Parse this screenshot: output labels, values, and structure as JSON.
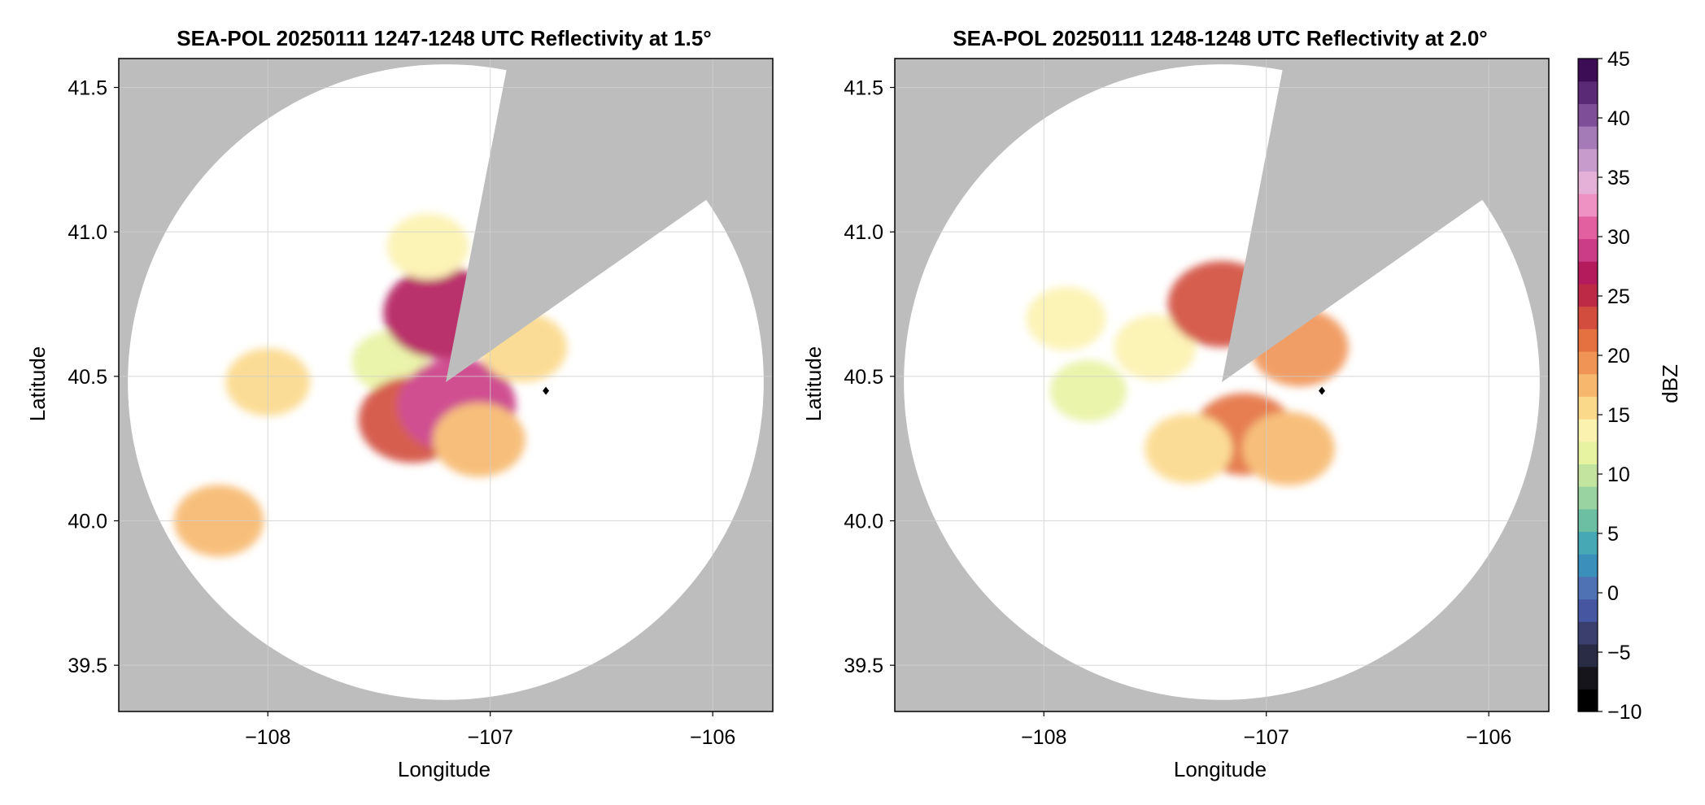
{
  "chart_data": [
    {
      "type": "heatmap",
      "title": "SEA-POL 20250111 1247-1248 UTC Reflectivity at 1.5°",
      "xlabel": "Longitude",
      "ylabel": "Latitude",
      "xlim": [
        -108.67,
        -105.73
      ],
      "ylim": [
        39.34,
        41.6
      ],
      "xticks": [
        -108,
        -107,
        -106
      ],
      "xtick_labels": [
        "−108",
        "−107",
        "−106"
      ],
      "yticks": [
        39.5,
        40.0,
        40.5,
        41.0,
        41.5
      ],
      "ytick_labels": [
        "39.5",
        "40.0",
        "40.5",
        "41.0",
        "41.5"
      ],
      "grid": true,
      "radar_center": [
        -107.2,
        40.48
      ],
      "range_ring_deg_lat": 1.1,
      "blocked_sector_azimuth_deg": [
        11,
        55
      ],
      "marker": [
        -106.75,
        40.45
      ],
      "echo_regions": [
        {
          "lon": -107.45,
          "lat": 40.55,
          "value": 12
        },
        {
          "lon": -107.22,
          "lat": 40.72,
          "value": 27
        },
        {
          "lon": -107.35,
          "lat": 40.35,
          "value": 24
        },
        {
          "lon": -107.15,
          "lat": 40.4,
          "value": 28
        },
        {
          "lon": -107.05,
          "lat": 40.28,
          "value": 18
        },
        {
          "lon": -106.85,
          "lat": 40.6,
          "value": 16
        },
        {
          "lon": -108.0,
          "lat": 40.48,
          "value": 15
        },
        {
          "lon": -107.28,
          "lat": 40.95,
          "value": 14
        },
        {
          "lon": -108.22,
          "lat": 40.0,
          "value": 17
        }
      ]
    },
    {
      "type": "heatmap",
      "title": "SEA-POL 20250111 1248-1248 UTC Reflectivity at 2.0°",
      "xlabel": "Longitude",
      "ylabel": "Latitude",
      "xlim": [
        -108.67,
        -105.73
      ],
      "ylim": [
        39.34,
        41.6
      ],
      "xticks": [
        -108,
        -107,
        -106
      ],
      "xtick_labels": [
        "−108",
        "−107",
        "−106"
      ],
      "yticks": [
        39.5,
        40.0,
        40.5,
        41.0,
        41.5
      ],
      "ytick_labels": [
        "39.5",
        "40.0",
        "40.5",
        "41.0",
        "41.5"
      ],
      "grid": true,
      "radar_center": [
        -107.2,
        40.48
      ],
      "range_ring_deg_lat": 1.1,
      "blocked_sector_azimuth_deg": [
        11,
        55
      ],
      "marker": [
        -106.75,
        40.45
      ],
      "echo_regions": [
        {
          "lon": -107.5,
          "lat": 40.6,
          "value": 14
        },
        {
          "lon": -107.2,
          "lat": 40.75,
          "value": 24
        },
        {
          "lon": -107.1,
          "lat": 40.3,
          "value": 22
        },
        {
          "lon": -106.9,
          "lat": 40.25,
          "value": 18
        },
        {
          "lon": -106.85,
          "lat": 40.6,
          "value": 20
        },
        {
          "lon": -107.8,
          "lat": 40.45,
          "value": 12
        },
        {
          "lon": -107.35,
          "lat": 40.25,
          "value": 16
        },
        {
          "lon": -107.9,
          "lat": 40.7,
          "value": 13
        }
      ]
    }
  ],
  "colorbar": {
    "label": "dBZ",
    "range": [
      -10,
      45
    ],
    "ticks": [
      45,
      40,
      35,
      30,
      25,
      20,
      15,
      10,
      5,
      0,
      -5,
      -10
    ],
    "tick_labels": [
      "45",
      "40",
      "35",
      "30",
      "25",
      "20",
      "15",
      "10",
      "5",
      "0",
      "−5",
      "−10"
    ],
    "colors": [
      "#000000",
      "#17151c",
      "#2a2b44",
      "#3a3f6e",
      "#4656a0",
      "#4f72b4",
      "#3a90bb",
      "#47a8b5",
      "#6dbfa4",
      "#98d3a1",
      "#c3e49e",
      "#e8f3a2",
      "#fcf2af",
      "#fbd98b",
      "#f7b86d",
      "#f09456",
      "#e4713f",
      "#d24d3e",
      "#bd2a45",
      "#b31b5d",
      "#cb3d86",
      "#e25fa0",
      "#ee92c4",
      "#e6b1d8",
      "#c79ccd",
      "#a57bb7",
      "#7e4f98",
      "#5b2a77",
      "#3c0c55"
    ]
  },
  "colors": {
    "background": "#bdbdbd",
    "coverage": "#ffffff",
    "grid": "#cfcfcf"
  }
}
